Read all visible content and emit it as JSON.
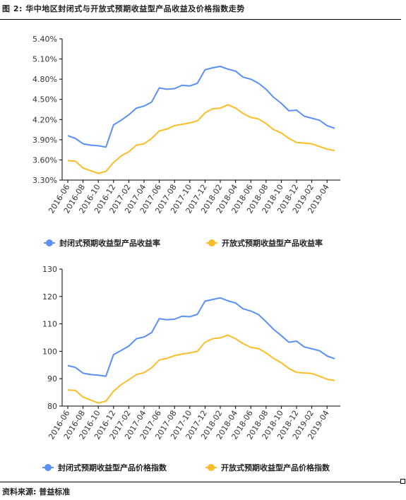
{
  "figure": {
    "title": "图 2:  华中地区封闭式与开放式预期收益型产品收益及价格指数走势",
    "source": "资料来源:  普益标准"
  },
  "colors": {
    "series1": "#5b8ff9",
    "series2": "#fbbd28",
    "axis": "#000000"
  },
  "chart_data": [
    {
      "type": "line",
      "title": "",
      "xlabel": "",
      "ylabel": "",
      "ylim": [
        3.3,
        5.4
      ],
      "y_ticks": [
        "3.30%",
        "3.60%",
        "3.90%",
        "4.20%",
        "4.50%",
        "4.80%",
        "5.10%",
        "5.40%"
      ],
      "y_tick_values": [
        3.3,
        3.6,
        3.9,
        4.2,
        4.5,
        4.8,
        5.1,
        5.4
      ],
      "x": [
        "2016-06",
        "2016-07",
        "2016-08",
        "2016-09",
        "2016-10",
        "2016-11",
        "2016-12",
        "2017-01",
        "2017-02",
        "2017-03",
        "2017-04",
        "2017-05",
        "2017-06",
        "2017-07",
        "2017-08",
        "2017-09",
        "2017-10",
        "2017-11",
        "2017-12",
        "2018-01",
        "2018-02",
        "2018-03",
        "2018-04",
        "2018-05",
        "2018-06",
        "2018-07",
        "2018-08",
        "2018-09",
        "2018-10",
        "2018-11",
        "2018-12",
        "2019-01",
        "2019-02",
        "2019-03",
        "2019-04",
        "2019-05"
      ],
      "x_tick_labels": [
        "2016-06",
        "2016-08",
        "2016-10",
        "2016-12",
        "2017-02",
        "2017-04",
        "2017-06",
        "2017-08",
        "2017-10",
        "2017-12",
        "2018-02",
        "2018-04",
        "2018-06",
        "2018-08",
        "2018-10",
        "2018-12",
        "2019-02",
        "2019-04"
      ],
      "grid": false,
      "legend_position": "bottom",
      "series": [
        {
          "name": "封闭式预期收益型产品收益率",
          "values": [
            3.96,
            3.92,
            3.84,
            3.82,
            3.81,
            3.79,
            4.12,
            4.19,
            4.27,
            4.37,
            4.4,
            4.46,
            4.67,
            4.65,
            4.66,
            4.71,
            4.7,
            4.74,
            4.94,
            4.97,
            4.99,
            4.95,
            4.92,
            4.83,
            4.8,
            4.74,
            4.65,
            4.53,
            4.44,
            4.33,
            4.34,
            4.25,
            4.22,
            4.19,
            4.11,
            4.07
          ]
        },
        {
          "name": "开放式预期收益型产品收益率",
          "values": [
            3.59,
            3.58,
            3.48,
            3.44,
            3.4,
            3.43,
            3.56,
            3.66,
            3.72,
            3.82,
            3.84,
            3.92,
            4.03,
            4.06,
            4.11,
            4.13,
            4.15,
            4.18,
            4.3,
            4.36,
            4.37,
            4.42,
            4.37,
            4.29,
            4.23,
            4.21,
            4.14,
            4.05,
            4.0,
            3.92,
            3.86,
            3.85,
            3.84,
            3.8,
            3.76,
            3.74
          ]
        }
      ]
    },
    {
      "type": "line",
      "title": "",
      "xlabel": "",
      "ylabel": "",
      "ylim": [
        80,
        130
      ],
      "y_ticks": [
        "80",
        "90",
        "100",
        "110",
        "120",
        "130"
      ],
      "y_tick_values": [
        80,
        90,
        100,
        110,
        120,
        130
      ],
      "x": [
        "2016-06",
        "2016-07",
        "2016-08",
        "2016-09",
        "2016-10",
        "2016-11",
        "2016-12",
        "2017-01",
        "2017-02",
        "2017-03",
        "2017-04",
        "2017-05",
        "2017-06",
        "2017-07",
        "2017-08",
        "2017-09",
        "2017-10",
        "2017-11",
        "2017-12",
        "2018-01",
        "2018-02",
        "2018-03",
        "2018-04",
        "2018-05",
        "2018-06",
        "2018-07",
        "2018-08",
        "2018-09",
        "2018-10",
        "2018-11",
        "2018-12",
        "2019-01",
        "2019-02",
        "2019-03",
        "2019-04",
        "2019-05"
      ],
      "x_tick_labels": [
        "2016-06",
        "2016-08",
        "2016-10",
        "2016-12",
        "2017-02",
        "2017-04",
        "2017-06",
        "2017-08",
        "2017-10",
        "2017-12",
        "2018-02",
        "2018-04",
        "2018-06",
        "2018-08",
        "2018-10",
        "2018-12",
        "2019-02",
        "2019-04"
      ],
      "grid": false,
      "legend_position": "bottom",
      "series": [
        {
          "name": "封闭式预期收益型产品价格指数",
          "values": [
            94.8,
            94.1,
            92.0,
            91.5,
            91.3,
            90.9,
            98.8,
            100.3,
            101.9,
            104.6,
            105.2,
            106.8,
            111.9,
            111.5,
            111.7,
            112.8,
            112.6,
            113.5,
            118.3,
            118.9,
            119.5,
            118.4,
            117.6,
            115.5,
            114.7,
            113.4,
            110.8,
            108.0,
            105.7,
            103.3,
            103.7,
            101.6,
            100.9,
            100.2,
            98.3,
            97.3
          ]
        },
        {
          "name": "开放式预期收益型产品价格指数",
          "values": [
            85.9,
            85.7,
            83.3,
            82.2,
            81.1,
            81.8,
            85.4,
            87.8,
            89.6,
            91.5,
            92.2,
            94.0,
            96.8,
            97.4,
            98.4,
            99.0,
            99.4,
            100.0,
            103.3,
            104.6,
            104.9,
            105.9,
            104.6,
            102.8,
            101.4,
            101.0,
            99.4,
            97.4,
            95.8,
            93.7,
            92.3,
            92.1,
            91.9,
            90.9,
            89.8,
            89.3
          ]
        }
      ]
    }
  ]
}
